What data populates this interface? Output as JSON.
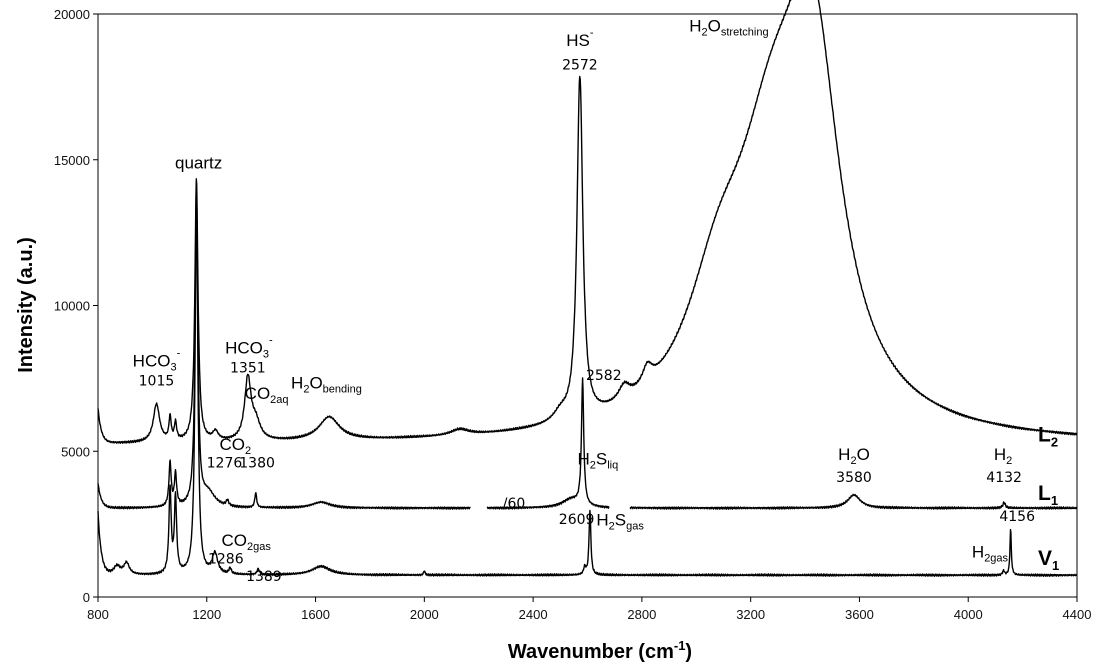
{
  "chart_data": {
    "type": "line",
    "xlabel_main": "Wavenumber (cm",
    "xlabel_sup": "-1",
    "xlabel_end": ")",
    "ylabel": "Intensity (a.u.)",
    "xlim": [
      800,
      4400
    ],
    "ylim": [
      0,
      20000
    ],
    "xticks": [
      800,
      1200,
      1600,
      2000,
      2400,
      2800,
      3200,
      3600,
      4000,
      4400
    ],
    "yticks": [
      0,
      5000,
      10000,
      15000,
      20000
    ],
    "series": [
      {
        "name": "L",
        "name_sub": "2",
        "baseline": 5200,
        "start": 6400,
        "gaps": [],
        "peaks": [
          [
            1015,
            1300,
            14
          ],
          [
            1065,
            800,
            5
          ],
          [
            1085,
            600,
            5
          ],
          [
            1162,
            9000,
            7
          ],
          [
            1232,
            300,
            12
          ],
          [
            1351,
            2100,
            14
          ],
          [
            1380,
            600,
            20
          ],
          [
            1650,
            800,
            45
          ],
          [
            2130,
            200,
            40
          ],
          [
            2500,
            300,
            30
          ],
          [
            2572,
            11700,
            13
          ],
          [
            2735,
            500,
            25
          ],
          [
            2820,
            600,
            22
          ],
          [
            3080,
            3500,
            140
          ],
          [
            3280,
            8200,
            170
          ],
          [
            3430,
            11000,
            120
          ]
        ]
      },
      {
        "name": "L",
        "name_sub": "1",
        "baseline": 3050,
        "start": 3900,
        "gaps": [
          [
            2170,
            2230
          ],
          [
            2680,
            2755
          ]
        ],
        "peaks": [
          [
            1065,
            1500,
            5
          ],
          [
            1085,
            1100,
            5
          ],
          [
            1162,
            10900,
            6
          ],
          [
            1205,
            500,
            30
          ],
          [
            1276,
            200,
            5
          ],
          [
            1380,
            500,
            4
          ],
          [
            1620,
            200,
            40
          ],
          [
            2582,
            4300,
            5
          ],
          [
            2540,
            300,
            40
          ],
          [
            3580,
            450,
            28
          ],
          [
            4132,
            200,
            5
          ]
        ]
      },
      {
        "name": "V",
        "name_sub": "1",
        "baseline": 750,
        "start": 2900,
        "gaps": [],
        "peaks": [
          [
            870,
            300,
            15
          ],
          [
            905,
            400,
            12
          ],
          [
            1065,
            2900,
            5
          ],
          [
            1085,
            2600,
            5
          ],
          [
            1162,
            13000,
            6
          ],
          [
            1230,
            700,
            12
          ],
          [
            1286,
            200,
            5
          ],
          [
            1389,
            200,
            5
          ],
          [
            1620,
            300,
            40
          ],
          [
            2000,
            150,
            3
          ],
          [
            2590,
            250,
            5
          ],
          [
            2609,
            2200,
            4
          ],
          [
            4156,
            1600,
            3
          ],
          [
            4130,
            150,
            4
          ]
        ]
      }
    ],
    "annotations": [
      {
        "id": "quartz",
        "x": 1170,
        "y": 14700,
        "text": "quartz"
      },
      {
        "id": "hs",
        "x": 2572,
        "y": 18900,
        "text": "HS",
        "sup": "-"
      },
      {
        "id": "hs-num",
        "x": 2572,
        "y": 18100,
        "text": "2572"
      },
      {
        "id": "h2o-str",
        "x": 3120,
        "y": 19400,
        "text": "H",
        "sub": "2",
        "text2": "O",
        "sub2": "stretching"
      },
      {
        "id": "hco3-a",
        "x": 1015,
        "y": 7900,
        "text": "HCO",
        "sub": "3",
        "sup": "-"
      },
      {
        "id": "num-1015",
        "x": 1015,
        "y": 7250,
        "text": "1015"
      },
      {
        "id": "hco3-b",
        "x": 1355,
        "y": 8350,
        "text": "HCO",
        "sub": "3",
        "sup": "-"
      },
      {
        "id": "num-1351",
        "x": 1351,
        "y": 7700,
        "text": "1351"
      },
      {
        "id": "co2aq",
        "x": 1420,
        "y": 6800,
        "text": "CO",
        "sub": "2aq"
      },
      {
        "id": "h2o-bend",
        "x": 1640,
        "y": 7150,
        "text": "H",
        "sub": "2",
        "text2": "O",
        "sub2": "bending"
      },
      {
        "id": "num-2582",
        "x": 2660,
        "y": 7450,
        "text": "2582"
      },
      {
        "id": "co2",
        "x": 1305,
        "y": 5050,
        "text": "CO",
        "sub": "2"
      },
      {
        "id": "num-1276",
        "x": 1265,
        "y": 4450,
        "text": "1276"
      },
      {
        "id": "num-1380",
        "x": 1385,
        "y": 4450,
        "text": "1380"
      },
      {
        "id": "div60",
        "x": 2330,
        "y": 3050,
        "text": "/60"
      },
      {
        "id": "h2sliq",
        "x": 2638,
        "y": 4550,
        "text": "H",
        "sub": "2",
        "text2": "S",
        "sub2": "liq"
      },
      {
        "id": "num-2609",
        "x": 2560,
        "y": 2500,
        "text": "2609"
      },
      {
        "id": "h2sgas",
        "x": 2720,
        "y": 2450,
        "text": "H",
        "sub": "2",
        "text2": "S",
        "sub2": "gas"
      },
      {
        "id": "h2o",
        "x": 3580,
        "y": 4700,
        "text": "H",
        "sub": "2",
        "text2": "O"
      },
      {
        "id": "num-3580",
        "x": 3580,
        "y": 3950,
        "text": "3580"
      },
      {
        "id": "h2",
        "x": 4128,
        "y": 4700,
        "text": "H",
        "sub": "2"
      },
      {
        "id": "num-4132",
        "x": 4132,
        "y": 3950,
        "text": "4132"
      },
      {
        "id": "num-4156",
        "x": 4180,
        "y": 2600,
        "text": "4156"
      },
      {
        "id": "h2gas",
        "x": 4080,
        "y": 1350,
        "text": "H",
        "sub": "2gas"
      },
      {
        "id": "co2gas",
        "x": 1345,
        "y": 1750,
        "text": "CO",
        "sub": "2gas"
      },
      {
        "id": "num-1286",
        "x": 1270,
        "y": 1150,
        "text": "1286"
      },
      {
        "id": "num-1389",
        "x": 1410,
        "y": 550,
        "text": "1389"
      }
    ]
  }
}
